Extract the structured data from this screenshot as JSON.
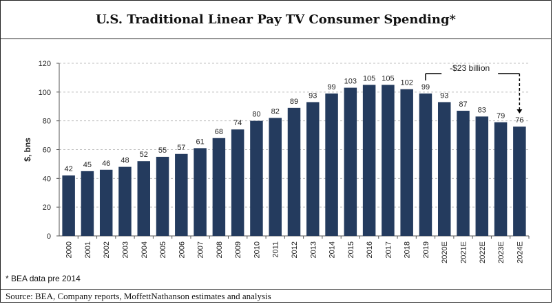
{
  "title": "U.S. Traditional Linear Pay TV Consumer Spending*",
  "footnote": "* BEA data pre 2014",
  "source": "Source: BEA, Company reports, MoffettNathanson estimates and analysis",
  "annotation": "-$23 billion",
  "colors": {
    "bar": "#243b5e",
    "grid": "#bfbfbf",
    "text": "#222222"
  },
  "chart_data": {
    "type": "bar",
    "categories": [
      "2000",
      "2001",
      "2002",
      "2003",
      "2004",
      "2005",
      "2006",
      "2007",
      "2008",
      "2009",
      "2010",
      "2011",
      "2012",
      "2013",
      "2014",
      "2015",
      "2016",
      "2017",
      "2018",
      "2019",
      "2020E",
      "2021E",
      "2022E",
      "2023E",
      "2024E"
    ],
    "values": [
      42,
      45,
      46,
      48,
      52,
      55,
      57,
      61,
      68,
      74,
      80,
      82,
      89,
      93,
      99,
      103,
      105,
      105,
      102,
      99,
      93,
      87,
      83,
      79,
      76
    ],
    "ylabel": "$, bns",
    "xlabel": "",
    "ylim": [
      0,
      120
    ],
    "yticks": [
      0,
      20,
      40,
      60,
      80,
      100,
      120
    ],
    "grid": true,
    "legend": "none"
  }
}
